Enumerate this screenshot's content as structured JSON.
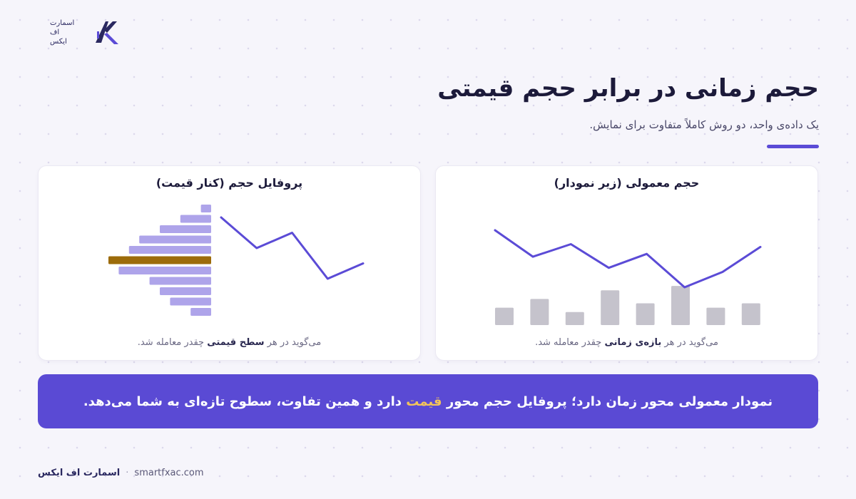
{
  "logo": {
    "lines": [
      "اسمارت",
      "اف",
      "ایکس"
    ],
    "mark_icon": "smartfx-logo-mark",
    "colors": {
      "primary": "#2a2860",
      "accent": "#5b4bd6"
    }
  },
  "header": {
    "title": "حجم زمانی در برابر حجم قیمتی",
    "subtitle": "یک داده‌ی واحد، دو روش کاملاً متفاوت برای نمایش."
  },
  "cards": {
    "left": {
      "title": "پروفایل حجم (کنار قیمت)",
      "caption_before": "می‌گوید در هر ",
      "caption_bold": "سطح قیمتی",
      "caption_after": " چقدر معامله شد."
    },
    "right": {
      "title": "حجم معمولی (زیر نمودار)",
      "caption_before": "می‌گوید در هر ",
      "caption_bold": "بازه‌ی زمانی",
      "caption_after": " چقدر معامله شد."
    }
  },
  "chart_data": [
    {
      "type": "bar",
      "orientation": "horizontal",
      "values": [
        1,
        3,
        5,
        7,
        8,
        10,
        9,
        6,
        5,
        4,
        2
      ],
      "highlight_index": 5,
      "price_line": [
        6,
        4,
        5,
        2,
        3
      ],
      "colors": {
        "bar": "#aea4ea",
        "highlight": "#9c6b0a",
        "line": "#5b4bd6"
      }
    },
    {
      "type": "bar",
      "values": [
        4,
        6,
        3,
        8,
        5,
        9,
        4,
        5
      ],
      "price_line": [
        6.5,
        4.6,
        5.5,
        3.8,
        4.8,
        2.4,
        3.5,
        5.3
      ],
      "colors": {
        "bar": "#c5c3cc",
        "line": "#5b4bd6"
      }
    }
  ],
  "banner": {
    "text_before": "نمودار معمولی محور زمان دارد؛ پروفایل حجم محور ",
    "highlight": "قیمت",
    "text_after": " دارد و همین تفاوت، سطوح تازه‌ای به شما می‌دهد.",
    "colors": {
      "background": "#5a4ad4",
      "highlight": "#f3c45a"
    }
  },
  "footer": {
    "brand": "اسمارت اف ایکس",
    "separator": "·",
    "url": "smartfxac.com"
  }
}
